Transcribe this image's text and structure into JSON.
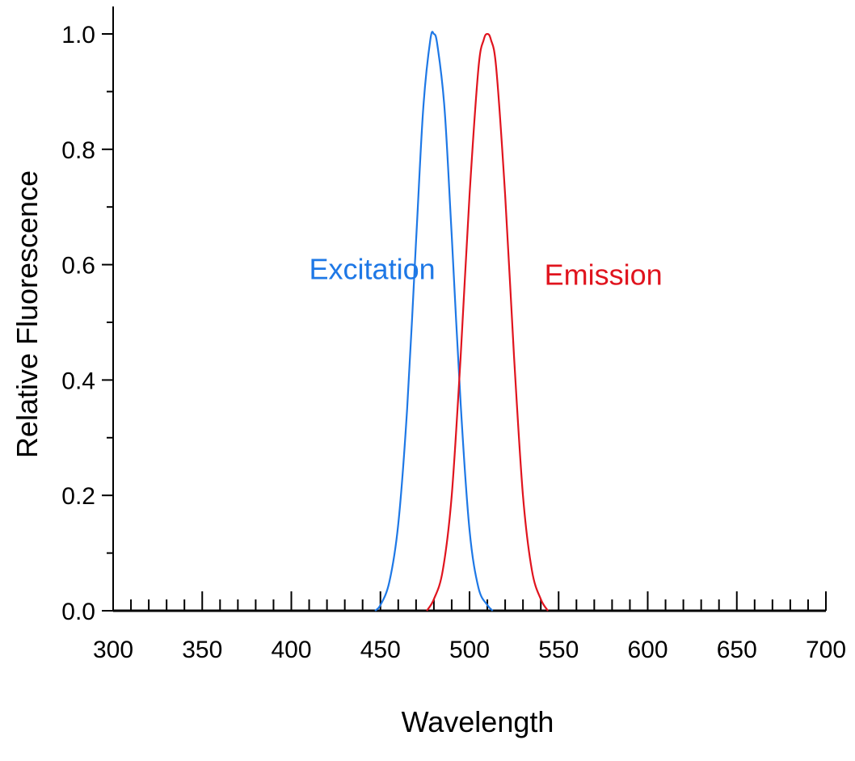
{
  "chart_data": {
    "type": "line",
    "title": "",
    "xlabel": "Wavelength",
    "ylabel": "Relative Fluorescence",
    "xlim": [
      300,
      700
    ],
    "ylim": [
      0,
      1
    ],
    "x_ticks": [
      300,
      350,
      400,
      450,
      500,
      550,
      600,
      650,
      700
    ],
    "x_tick_labels": [
      "300",
      "350",
      "400",
      "450",
      "500",
      "550",
      "600",
      "650",
      "700"
    ],
    "x_minor_step": 10,
    "y_ticks": [
      0,
      0.2,
      0.4,
      0.6,
      0.8,
      1.0
    ],
    "y_tick_labels": [
      "0.0",
      "0.2",
      "0.4",
      "0.6",
      "0.8",
      "1.0"
    ],
    "y_minor_step": 0.1,
    "grid": false,
    "legend": "none",
    "series": [
      {
        "name": "Excitation",
        "color": "#1e78e6",
        "x": [
          447,
          450,
          455,
          460,
          465,
          470,
          474,
          478,
          480,
          482,
          486,
          490,
          495,
          500,
          505,
          510,
          513
        ],
        "y": [
          0.0,
          0.01,
          0.05,
          0.15,
          0.35,
          0.64,
          0.87,
          0.99,
          1.0,
          0.98,
          0.87,
          0.65,
          0.36,
          0.14,
          0.04,
          0.01,
          0.0
        ]
      },
      {
        "name": "Emission",
        "color": "#e0141e",
        "x": [
          476,
          480,
          485,
          490,
          495,
          500,
          505,
          508,
          510,
          512,
          515,
          520,
          525,
          530,
          535,
          540,
          544
        ],
        "y": [
          0.0,
          0.02,
          0.07,
          0.2,
          0.44,
          0.72,
          0.94,
          0.99,
          1.0,
          0.99,
          0.94,
          0.72,
          0.44,
          0.2,
          0.07,
          0.02,
          0.0
        ]
      }
    ],
    "annotations": [
      {
        "text": "Excitation",
        "x": 410,
        "y": 0.575,
        "color": "#1e78e6"
      },
      {
        "text": "Emission",
        "x": 542,
        "y": 0.565,
        "color": "#e0141e"
      }
    ]
  }
}
